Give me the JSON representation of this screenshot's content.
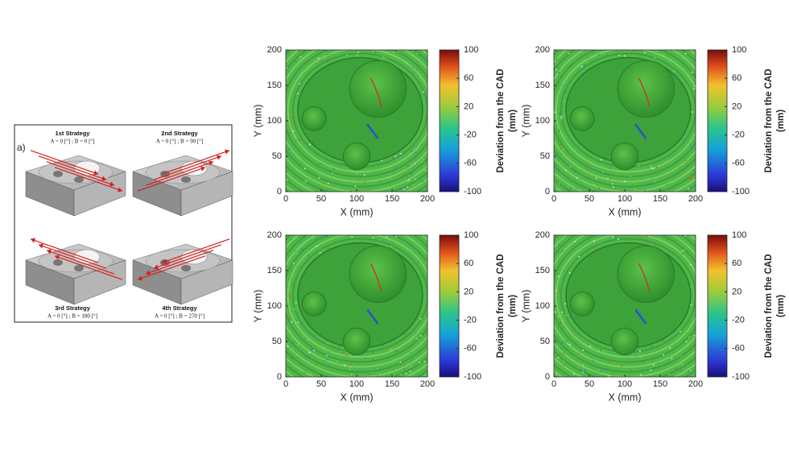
{
  "panel_a": {
    "label": "a)",
    "strategies": [
      {
        "title": "1st Strategy",
        "angles": "A = 0 [°] ; B = 0 [°]"
      },
      {
        "title": "2nd Strategy",
        "angles": "A = 0 [°] ; B = 90 [°]"
      },
      {
        "title": "3rd Strategy",
        "angles": "A = 0 [°] ; B = 180 [°]"
      },
      {
        "title": "4th Strategy",
        "angles": "A = 0 [°] ; B = 270 [°]"
      }
    ]
  },
  "maps": [
    {
      "xlabel": "X (mm)",
      "ylabel": "Y (mm)",
      "xlim": [
        0,
        200
      ],
      "ylim": [
        0,
        200
      ],
      "xticks": [
        0,
        50,
        100,
        150,
        200
      ],
      "yticks": [
        0,
        50,
        100,
        150,
        200
      ],
      "colorbar": {
        "label": [
          "Deviation from the CAD",
          "(mm)"
        ],
        "lim": [
          -100,
          100
        ],
        "ticks": [
          -100,
          -60,
          -20,
          20,
          60,
          100
        ]
      }
    },
    {
      "xlabel": "X (mm)",
      "ylabel": "Y (mm)",
      "xlim": [
        0,
        200
      ],
      "ylim": [
        0,
        200
      ],
      "xticks": [
        0,
        50,
        100,
        150,
        200
      ],
      "yticks": [
        0,
        50,
        100,
        150,
        200
      ],
      "colorbar": {
        "label": [
          "Deviation from the CAD",
          "(mm)"
        ],
        "lim": [
          -100,
          100
        ],
        "ticks": [
          -100,
          -60,
          -20,
          20,
          60,
          100
        ]
      }
    },
    {
      "xlabel": "X (mm)",
      "ylabel": "Y (mm)",
      "xlim": [
        0,
        200
      ],
      "ylim": [
        0,
        200
      ],
      "xticks": [
        0,
        50,
        100,
        150,
        200
      ],
      "yticks": [
        0,
        50,
        100,
        150,
        200
      ],
      "colorbar": {
        "label": [
          "Deviation from the CAD",
          "(mm)"
        ],
        "lim": [
          -100,
          100
        ],
        "ticks": [
          -100,
          -60,
          -20,
          20,
          60,
          100
        ]
      }
    },
    {
      "xlabel": "X (mm)",
      "ylabel": "Y (mm)",
      "xlim": [
        0,
        200
      ],
      "ylim": [
        0,
        200
      ],
      "xticks": [
        0,
        50,
        100,
        150,
        200
      ],
      "yticks": [
        0,
        50,
        100,
        150,
        200
      ],
      "colorbar": {
        "label": [
          "Deviation from the CAD",
          "(mm)"
        ],
        "lim": [
          -100,
          100
        ],
        "ticks": [
          -100,
          -60,
          -20,
          20,
          60,
          100
        ]
      }
    }
  ]
}
